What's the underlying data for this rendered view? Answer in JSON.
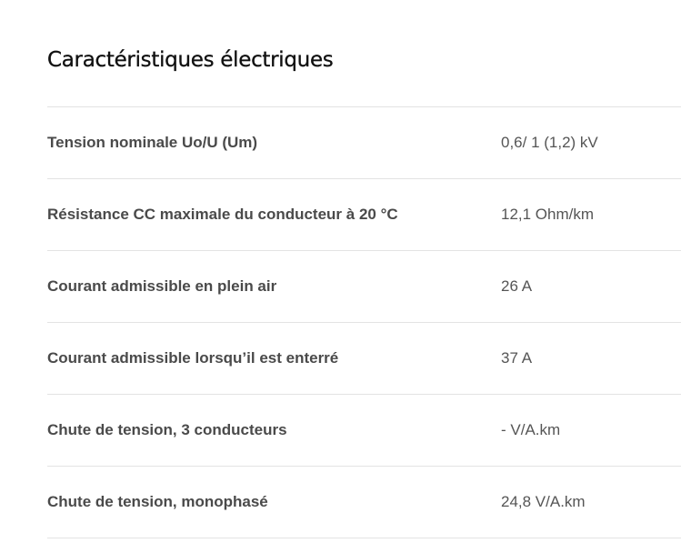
{
  "section": {
    "title": "Caractéristiques électriques"
  },
  "rows": [
    {
      "label": "Tension nominale Uo/U (Um)",
      "value": "0,6/ 1 (1,2) kV"
    },
    {
      "label": "Résistance CC maximale du conducteur à 20 °C",
      "value": "12,1 Ohm/km"
    },
    {
      "label": "Courant admissible en plein air",
      "value": "26 A"
    },
    {
      "label": "Courant admissible lorsqu’il est enterré",
      "value": "37 A"
    },
    {
      "label": "Chute de tension, 3 conducteurs",
      "value": "- V/A.km"
    },
    {
      "label": "Chute de tension, monophasé",
      "value": "24,8 V/A.km"
    }
  ]
}
